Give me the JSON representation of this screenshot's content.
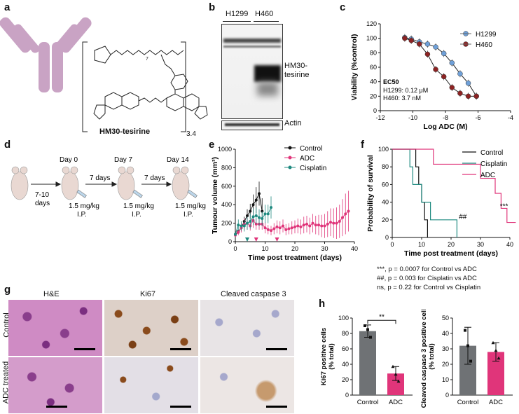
{
  "panels": {
    "a": {
      "letter": "a",
      "compound_label": "HM30-tesirine",
      "dar": "3.4",
      "peg_subscript": "7"
    },
    "b": {
      "letter": "b",
      "lanes": [
        "H1299",
        "H460"
      ],
      "band_main": "HM30-\ntesirine",
      "band_main_l1": "HM30-",
      "band_main_l2": "tesirine",
      "band_actin": "Actin"
    },
    "c": {
      "letter": "c"
    },
    "d": {
      "letter": "d",
      "pre": "7-10\ndays",
      "pre_l1": "7-10",
      "pre_l2": "days",
      "days": [
        "Day 0",
        "Day 7",
        "Day 14"
      ],
      "interval": "7 days",
      "dose_l1": "1.5 mg/kg",
      "dose_l2": "I.P."
    },
    "e": {
      "letter": "e"
    },
    "f": {
      "letter": "f",
      "stats": [
        {
          "sym": "***",
          "text": ", p = 0.0007 for Control vs ADC"
        },
        {
          "sym": "##",
          "text": ", p = 0.003 for Cisplatin vs ADC"
        },
        {
          "sym": "ns",
          "text": ", p = 0.22 for Control vs Cisplatin"
        }
      ]
    },
    "g": {
      "letter": "g",
      "columns": [
        "H&E",
        "Ki67",
        "Cleaved caspase 3"
      ],
      "rows": [
        "Control",
        "ADC treated"
      ]
    },
    "h": {
      "letter": "h"
    }
  },
  "chart_data": [
    {
      "id": "c",
      "type": "scatter",
      "xlabel": "Log ADC (M)",
      "ylabel": "Viability (%control)",
      "xlim": [
        -12,
        -4
      ],
      "ylim": [
        0,
        120
      ],
      "xticks": [
        -12,
        -10,
        -8,
        -6,
        -4
      ],
      "yticks": [
        0,
        20,
        40,
        60,
        80,
        100,
        120
      ],
      "legend": "top-right",
      "annotation_title": "EC50",
      "annotation_lines": [
        "H1299: 0.12 μM",
        "H460: 3.7 nM"
      ],
      "series": [
        {
          "name": "H1299",
          "color": "#6fa0d8",
          "x": [
            -10.5,
            -10.1,
            -9.6,
            -9.1,
            -8.6,
            -8.1,
            -7.6,
            -7.1,
            -6.6,
            -6.1
          ],
          "y": [
            101,
            99,
            95,
            92,
            88,
            79,
            66,
            51,
            38,
            20
          ]
        },
        {
          "name": "H460",
          "color": "#8c2323",
          "x": [
            -10.5,
            -10.1,
            -9.6,
            -9.1,
            -8.6,
            -8.1,
            -7.6,
            -7.1,
            -6.6,
            -6.1
          ],
          "y": [
            100,
            97,
            92,
            78,
            57,
            47,
            32,
            24,
            20,
            20
          ]
        }
      ]
    },
    {
      "id": "e",
      "type": "line",
      "xlabel": "Time post treatment (days)",
      "ylabel": "Tumour volume (mm³)",
      "xlim": [
        0,
        40
      ],
      "ylim": [
        0,
        1000
      ],
      "xticks": [
        0,
        10,
        20,
        30,
        40
      ],
      "yticks": [
        0,
        200,
        400,
        600,
        800,
        1000
      ],
      "legend": "top-right",
      "treatment_marks": [
        {
          "day": 4,
          "color": "#1f8a80"
        },
        {
          "day": 7,
          "color": "#e0357a"
        },
        {
          "day": 14,
          "color": "#e0357a"
        }
      ],
      "series": [
        {
          "name": "Control",
          "color": "#111111",
          "x": [
            0,
            1,
            2,
            3,
            4,
            5,
            6,
            7,
            8,
            9
          ],
          "y": [
            80,
            110,
            150,
            220,
            280,
            330,
            400,
            450,
            520,
            330
          ],
          "err": [
            10,
            20,
            30,
            50,
            70,
            80,
            110,
            140,
            130,
            140
          ]
        },
        {
          "name": "ADC",
          "color": "#e0357a",
          "x": [
            0,
            1,
            2,
            3,
            4,
            5,
            6,
            7,
            8,
            9,
            10,
            11,
            12,
            13,
            14,
            15,
            16,
            17,
            18,
            19,
            20,
            21,
            22,
            23,
            24,
            25,
            26,
            27,
            28,
            29,
            30,
            31,
            32,
            33,
            34,
            35,
            36,
            37,
            38
          ],
          "y": [
            70,
            100,
            150,
            190,
            200,
            170,
            230,
            190,
            190,
            190,
            150,
            130,
            120,
            140,
            160,
            150,
            170,
            130,
            140,
            150,
            160,
            170,
            160,
            180,
            190,
            170,
            200,
            180,
            180,
            170,
            170,
            190,
            210,
            200,
            200,
            220,
            260,
            300,
            330
          ],
          "err": [
            20,
            30,
            50,
            60,
            70,
            50,
            80,
            60,
            60,
            60,
            60,
            50,
            50,
            60,
            70,
            70,
            70,
            60,
            60,
            70,
            70,
            80,
            80,
            90,
            90,
            90,
            100,
            100,
            110,
            120,
            130,
            140,
            150,
            160,
            170,
            180,
            200,
            220,
            220
          ]
        },
        {
          "name": "Cisplatin",
          "color": "#1f8a80",
          "x": [
            0,
            1,
            2,
            3,
            4,
            5,
            6,
            7,
            8,
            9,
            10,
            11,
            12
          ],
          "y": [
            80,
            180,
            170,
            170,
            200,
            220,
            270,
            280,
            260,
            250,
            300,
            300,
            370
          ],
          "err": [
            20,
            60,
            50,
            60,
            70,
            80,
            90,
            90,
            90,
            80,
            100,
            100,
            120
          ]
        }
      ]
    },
    {
      "id": "f",
      "type": "line",
      "step": true,
      "xlabel": "Time post treatment (days)",
      "ylabel": "Probability of survival",
      "xlim": [
        0,
        40
      ],
      "ylim": [
        0,
        100
      ],
      "xticks": [
        0,
        10,
        20,
        30,
        40
      ],
      "yticks": [
        0,
        20,
        40,
        60,
        80,
        100
      ],
      "legend": "top-right",
      "annotations": [
        {
          "text": "***",
          "x": 38,
          "y": 33
        },
        {
          "text": "##",
          "x": 24,
          "y": 21
        }
      ],
      "series": [
        {
          "name": "Control",
          "color": "#111111",
          "steps": [
            [
              0,
              100
            ],
            [
              8,
              100
            ],
            [
              8,
              80
            ],
            [
              9,
              80
            ],
            [
              9,
              60
            ],
            [
              10,
              60
            ],
            [
              10,
              40
            ],
            [
              11,
              40
            ],
            [
              11,
              20
            ],
            [
              12,
              20
            ],
            [
              12,
              0
            ]
          ]
        },
        {
          "name": "Cisplatin",
          "color": "#1f8a80",
          "steps": [
            [
              0,
              100
            ],
            [
              6,
              100
            ],
            [
              6,
              80
            ],
            [
              7,
              80
            ],
            [
              7,
              60
            ],
            [
              10,
              60
            ],
            [
              10,
              40
            ],
            [
              13,
              40
            ],
            [
              13,
              20
            ],
            [
              22,
              20
            ],
            [
              22,
              0
            ]
          ]
        },
        {
          "name": "ADC",
          "color": "#e0357a",
          "steps": [
            [
              0,
              100
            ],
            [
              14,
              100
            ],
            [
              14,
              83
            ],
            [
              30,
              83
            ],
            [
              30,
              67
            ],
            [
              35,
              67
            ],
            [
              35,
              50
            ],
            [
              37,
              50
            ],
            [
              37,
              33
            ],
            [
              39,
              33
            ],
            [
              39,
              17
            ],
            [
              42,
              17
            ]
          ]
        }
      ]
    },
    {
      "id": "h1",
      "type": "bar",
      "ylabel": "Ki67 positive cells\n(% total)",
      "ylim": [
        0,
        100
      ],
      "yticks": [
        0,
        20,
        40,
        60,
        80,
        100
      ],
      "categories": [
        "Control",
        "ADC"
      ],
      "values": [
        83,
        28
      ],
      "err": [
        8,
        9
      ],
      "colors": [
        "#6f7275",
        "#e0357a"
      ],
      "points": [
        [
          90,
          85,
          75
        ],
        [
          37,
          27,
          18
        ]
      ],
      "significance": "**"
    },
    {
      "id": "h2",
      "type": "bar",
      "ylabel": "Cleaved caspase 3 positive cells\n(% total)",
      "ylim": [
        0,
        50
      ],
      "yticks": [
        0,
        10,
        20,
        30,
        40,
        50
      ],
      "categories": [
        "Control",
        "ADC"
      ],
      "values": [
        32,
        28
      ],
      "err": [
        12,
        6
      ],
      "colors": [
        "#6f7275",
        "#e0357a"
      ],
      "points": [
        [
          42,
          32,
          22
        ],
        [
          34,
          29,
          24
        ]
      ]
    }
  ]
}
